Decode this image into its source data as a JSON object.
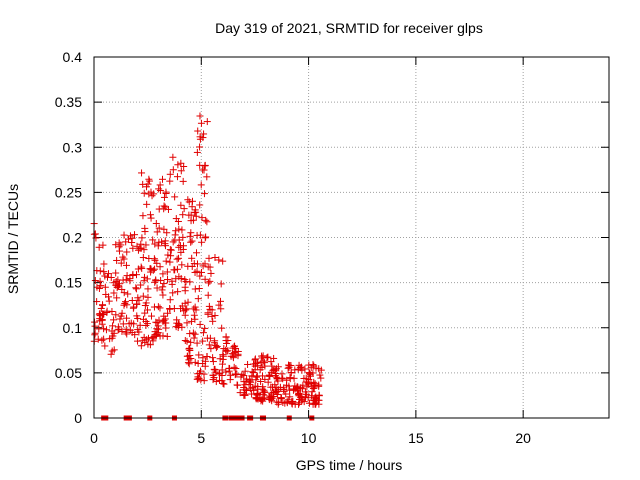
{
  "chart_data": {
    "type": "scatter",
    "title": "Day 319 of 2021, SRMTID for receiver glps",
    "xlabel": "GPS time / hours",
    "ylabel": "SRMTID / TECUs",
    "xlim": [
      0,
      24
    ],
    "ylim": [
      0,
      0.4
    ],
    "x_ticks": [
      0,
      5,
      10,
      15,
      20
    ],
    "x_tick_labels": [
      "0",
      "5",
      "10",
      "15",
      "20"
    ],
    "y_ticks": [
      0,
      0.05,
      0.1,
      0.15,
      0.2,
      0.25,
      0.3,
      0.35,
      0.4
    ],
    "y_tick_labels": [
      "0",
      "0.05",
      "0.1",
      "0.15",
      "0.2",
      "0.25",
      "0.3",
      "0.35",
      "0.4"
    ],
    "grid": true,
    "series": [
      {
        "name": "SRMTID",
        "marker": "plus",
        "color": "#e00000",
        "envelope": [
          {
            "x_start": 0.0,
            "x_end": 0.5,
            "y_min": 0.085,
            "y_max": 0.22,
            "count": 40
          },
          {
            "x_start": 0.5,
            "x_end": 1.0,
            "y_min": 0.07,
            "y_max": 0.16,
            "count": 25
          },
          {
            "x_start": 1.0,
            "x_end": 1.6,
            "y_min": 0.09,
            "y_max": 0.21,
            "count": 45
          },
          {
            "x_start": 1.6,
            "x_end": 2.2,
            "y_min": 0.085,
            "y_max": 0.205,
            "count": 40
          },
          {
            "x_start": 2.2,
            "x_end": 2.8,
            "y_min": 0.08,
            "y_max": 0.28,
            "count": 55
          },
          {
            "x_start": 2.8,
            "x_end": 3.5,
            "y_min": 0.09,
            "y_max": 0.27,
            "count": 70
          },
          {
            "x_start": 3.5,
            "x_end": 4.2,
            "y_min": 0.1,
            "y_max": 0.29,
            "count": 60
          },
          {
            "x_start": 4.2,
            "x_end": 4.8,
            "y_min": 0.06,
            "y_max": 0.25,
            "count": 60
          },
          {
            "x_start": 4.8,
            "x_end": 5.3,
            "y_min": 0.04,
            "y_max": 0.35,
            "count": 60
          },
          {
            "x_start": 5.3,
            "x_end": 6.0,
            "y_min": 0.04,
            "y_max": 0.18,
            "count": 50
          },
          {
            "x_start": 6.0,
            "x_end": 6.8,
            "y_min": 0.035,
            "y_max": 0.09,
            "count": 40
          },
          {
            "x_start": 6.8,
            "x_end": 7.5,
            "y_min": 0.025,
            "y_max": 0.06,
            "count": 30
          },
          {
            "x_start": 7.5,
            "x_end": 8.5,
            "y_min": 0.018,
            "y_max": 0.07,
            "count": 80
          },
          {
            "x_start": 8.5,
            "x_end": 10.6,
            "y_min": 0.015,
            "y_max": 0.06,
            "count": 140
          }
        ]
      },
      {
        "name": "zero-flags",
        "marker": "square",
        "color": "#e00000",
        "x": [
          0.45,
          0.5,
          0.55,
          1.5,
          1.55,
          1.6,
          1.65,
          2.6,
          3.75,
          6.1,
          6.15,
          6.4,
          6.5,
          6.55,
          6.65,
          6.75,
          6.9,
          7.25,
          7.3,
          7.85,
          7.9,
          9.1,
          10.15
        ],
        "y": [
          0,
          0,
          0,
          0,
          0,
          0,
          0,
          0,
          0,
          0,
          0,
          0,
          0,
          0,
          0,
          0,
          0,
          0,
          0,
          0,
          0,
          0,
          0
        ]
      }
    ]
  }
}
